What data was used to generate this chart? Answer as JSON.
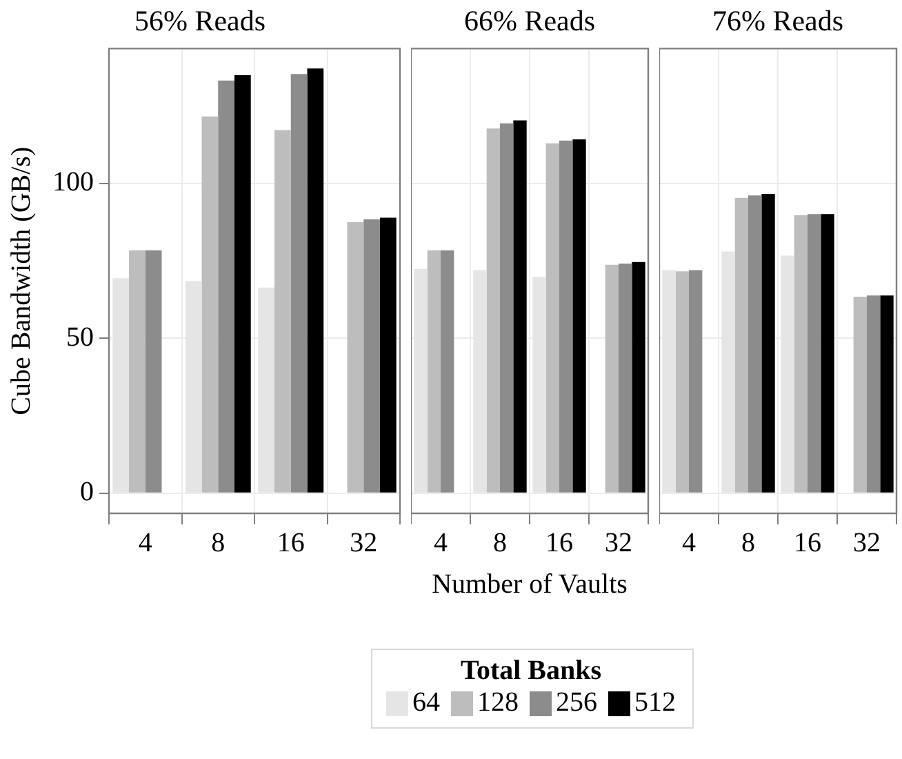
{
  "chart_data": [
    {
      "type": "bar",
      "title": "56% Reads",
      "ylabel": "Cube Bandwidth (GB/s)",
      "legend_title": "Total Banks",
      "legend": "bottom",
      "categories": [
        "4",
        "8",
        "16",
        "32"
      ],
      "series": [
        {
          "name": "64",
          "color": "#e5e5e5",
          "values": [
            69.4,
            68.5,
            66.4,
            0
          ]
        },
        {
          "name": "128",
          "color": "#bdbdbd",
          "values": [
            78.4,
            121.6,
            117.2,
            87.5
          ]
        },
        {
          "name": "256",
          "color": "#8c8c8c",
          "values": [
            78.4,
            133.2,
            135.3,
            88.4
          ]
        },
        {
          "name": "512",
          "color": "#000000",
          "values": [
            0,
            134.9,
            137.1,
            88.9
          ]
        }
      ],
      "ylim": [
        -6.5,
        143.5
      ],
      "yticks": [
        0,
        50,
        100
      ],
      "grid": true
    },
    {
      "type": "bar",
      "title": "66% Reads",
      "xlabel": "Number of Vaults",
      "categories": [
        "4",
        "8",
        "16",
        "32"
      ],
      "series": [
        {
          "name": "64",
          "color": "#e5e5e5",
          "values": [
            72.4,
            72.0,
            69.8,
            0
          ]
        },
        {
          "name": "128",
          "color": "#bdbdbd",
          "values": [
            78.4,
            117.7,
            112.9,
            73.7
          ]
        },
        {
          "name": "256",
          "color": "#8c8c8c",
          "values": [
            78.4,
            119.4,
            113.8,
            74.1
          ]
        },
        {
          "name": "512",
          "color": "#000000",
          "values": [
            0,
            120.3,
            114.2,
            74.6
          ]
        }
      ],
      "ylim": [
        -6.5,
        143.5
      ],
      "yticks": [
        0,
        50,
        100
      ],
      "grid": true,
      "tick_labels": "x"
    },
    {
      "type": "bar",
      "title": "76% Reads",
      "categories": [
        "4",
        "8",
        "16",
        "32"
      ],
      "series": [
        {
          "name": "64",
          "color": "#e5e5e5",
          "values": [
            72.0,
            78.0,
            76.7,
            0
          ]
        },
        {
          "name": "128",
          "color": "#bdbdbd",
          "values": [
            71.6,
            95.3,
            89.7,
            63.4
          ]
        },
        {
          "name": "256",
          "color": "#8c8c8c",
          "values": [
            72.0,
            96.1,
            90.1,
            63.8
          ]
        },
        {
          "name": "512",
          "color": "#000000",
          "values": [
            0,
            96.6,
            90.1,
            63.8
          ]
        }
      ],
      "ylim": [
        -6.5,
        143.5
      ],
      "yticks": [
        0,
        50,
        100
      ],
      "grid": true,
      "tick_labels": "x"
    }
  ]
}
